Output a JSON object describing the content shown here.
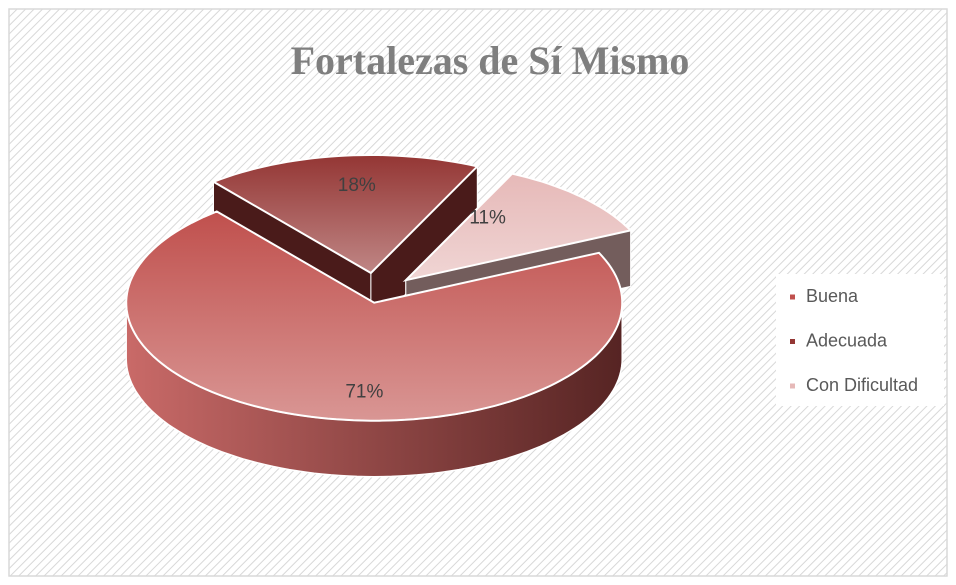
{
  "chart_data": {
    "type": "pie",
    "title": "Fortalezas de Sí Mismo",
    "categories": [
      "Buena",
      "Adecuada",
      "Con Dificultad"
    ],
    "values": [
      71,
      18,
      11
    ],
    "value_labels": [
      "71%",
      "18%",
      "11%"
    ],
    "colors": [
      "#c0504d",
      "#943634",
      "#e6b9b8"
    ],
    "legend": "right"
  }
}
